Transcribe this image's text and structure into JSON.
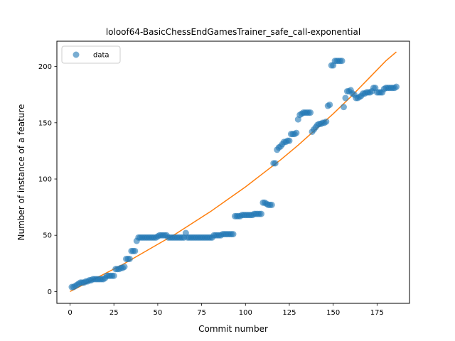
{
  "chart_data": {
    "type": "scatter",
    "title": "loloof64-BasicChessEndGamesTrainer_safe_call-exponential",
    "xlabel": "Commit number",
    "ylabel": "Number of instance of a feature",
    "xlim": [
      -7.5,
      193.5
    ],
    "ylim": [
      -10.5,
      222.5
    ],
    "xticks": [
      0,
      25,
      50,
      75,
      100,
      125,
      150,
      175
    ],
    "yticks": [
      0,
      50,
      100,
      150,
      200
    ],
    "grid": false,
    "legend": {
      "placement": "upper left",
      "entries": [
        "data"
      ]
    },
    "colors": {
      "data": "#1f77b4",
      "fit": "#ff7f0e"
    },
    "series": [
      {
        "name": "data",
        "kind": "scatter",
        "points": [
          [
            1,
            4
          ],
          [
            2,
            4
          ],
          [
            3,
            5
          ],
          [
            4,
            6
          ],
          [
            5,
            7
          ],
          [
            6,
            8
          ],
          [
            7,
            8
          ],
          [
            8,
            8
          ],
          [
            9,
            9
          ],
          [
            10,
            9
          ],
          [
            11,
            10
          ],
          [
            12,
            10
          ],
          [
            13,
            11
          ],
          [
            14,
            11
          ],
          [
            15,
            11
          ],
          [
            16,
            11
          ],
          [
            17,
            11
          ],
          [
            18,
            11
          ],
          [
            19,
            11
          ],
          [
            20,
            12
          ],
          [
            21,
            14
          ],
          [
            22,
            14
          ],
          [
            23,
            14
          ],
          [
            24,
            14
          ],
          [
            25,
            14
          ],
          [
            26,
            20
          ],
          [
            27,
            20
          ],
          [
            28,
            20
          ],
          [
            29,
            21
          ],
          [
            30,
            21
          ],
          [
            31,
            22
          ],
          [
            32,
            29
          ],
          [
            33,
            29
          ],
          [
            34,
            29
          ],
          [
            35,
            36
          ],
          [
            36,
            36
          ],
          [
            37,
            36
          ],
          [
            38,
            45
          ],
          [
            39,
            48
          ],
          [
            40,
            48
          ],
          [
            41,
            48
          ],
          [
            42,
            48
          ],
          [
            43,
            48
          ],
          [
            44,
            48
          ],
          [
            45,
            48
          ],
          [
            46,
            48
          ],
          [
            47,
            48
          ],
          [
            48,
            48
          ],
          [
            49,
            48
          ],
          [
            50,
            49
          ],
          [
            51,
            50
          ],
          [
            52,
            50
          ],
          [
            53,
            50
          ],
          [
            54,
            50
          ],
          [
            55,
            50
          ],
          [
            56,
            48
          ],
          [
            57,
            48
          ],
          [
            58,
            48
          ],
          [
            59,
            48
          ],
          [
            60,
            48
          ],
          [
            61,
            48
          ],
          [
            62,
            48
          ],
          [
            63,
            48
          ],
          [
            64,
            48
          ],
          [
            65,
            48
          ],
          [
            66,
            52
          ],
          [
            67,
            48
          ],
          [
            68,
            48
          ],
          [
            69,
            48
          ],
          [
            70,
            48
          ],
          [
            71,
            48
          ],
          [
            72,
            48
          ],
          [
            73,
            48
          ],
          [
            74,
            48
          ],
          [
            75,
            48
          ],
          [
            76,
            48
          ],
          [
            77,
            48
          ],
          [
            78,
            48
          ],
          [
            79,
            48
          ],
          [
            80,
            48
          ],
          [
            81,
            48
          ],
          [
            82,
            50
          ],
          [
            83,
            50
          ],
          [
            84,
            50
          ],
          [
            85,
            50
          ],
          [
            86,
            50
          ],
          [
            87,
            51
          ],
          [
            88,
            51
          ],
          [
            89,
            51
          ],
          [
            90,
            51
          ],
          [
            91,
            51
          ],
          [
            92,
            51
          ],
          [
            93,
            51
          ],
          [
            94,
            67
          ],
          [
            95,
            67
          ],
          [
            96,
            67
          ],
          [
            97,
            67
          ],
          [
            98,
            68
          ],
          [
            99,
            68
          ],
          [
            100,
            68
          ],
          [
            101,
            68
          ],
          [
            102,
            68
          ],
          [
            103,
            68
          ],
          [
            104,
            68
          ],
          [
            105,
            69
          ],
          [
            106,
            69
          ],
          [
            107,
            69
          ],
          [
            108,
            69
          ],
          [
            109,
            69
          ],
          [
            110,
            79
          ],
          [
            111,
            79
          ],
          [
            112,
            78
          ],
          [
            113,
            77
          ],
          [
            114,
            77
          ],
          [
            115,
            77
          ],
          [
            116,
            114
          ],
          [
            117,
            114
          ],
          [
            118,
            126
          ],
          [
            119,
            128
          ],
          [
            120,
            129
          ],
          [
            121,
            131
          ],
          [
            122,
            133
          ],
          [
            123,
            133
          ],
          [
            124,
            134
          ],
          [
            125,
            134
          ],
          [
            126,
            140
          ],
          [
            127,
            140
          ],
          [
            128,
            140
          ],
          [
            129,
            141
          ],
          [
            130,
            153
          ],
          [
            131,
            157
          ],
          [
            132,
            158
          ],
          [
            133,
            159
          ],
          [
            134,
            159
          ],
          [
            135,
            159
          ],
          [
            136,
            159
          ],
          [
            137,
            159
          ],
          [
            138,
            142
          ],
          [
            139,
            144
          ],
          [
            140,
            146
          ],
          [
            141,
            148
          ],
          [
            142,
            149
          ],
          [
            143,
            149
          ],
          [
            144,
            150
          ],
          [
            145,
            150
          ],
          [
            146,
            151
          ],
          [
            147,
            165
          ],
          [
            148,
            166
          ],
          [
            149,
            201
          ],
          [
            150,
            201
          ],
          [
            151,
            205
          ],
          [
            152,
            205
          ],
          [
            153,
            205
          ],
          [
            154,
            205
          ],
          [
            155,
            205
          ],
          [
            156,
            164
          ],
          [
            157,
            172
          ],
          [
            158,
            178
          ],
          [
            159,
            178
          ],
          [
            160,
            179
          ],
          [
            161,
            176
          ],
          [
            162,
            175
          ],
          [
            163,
            172
          ],
          [
            164,
            172
          ],
          [
            165,
            173
          ],
          [
            166,
            174
          ],
          [
            167,
            176
          ],
          [
            168,
            176
          ],
          [
            169,
            177
          ],
          [
            170,
            177
          ],
          [
            171,
            177
          ],
          [
            172,
            178
          ],
          [
            173,
            181
          ],
          [
            174,
            181
          ],
          [
            175,
            177
          ],
          [
            176,
            177
          ],
          [
            177,
            177
          ],
          [
            178,
            177
          ],
          [
            179,
            180
          ],
          [
            180,
            181
          ],
          [
            181,
            181
          ],
          [
            182,
            181
          ],
          [
            183,
            181
          ],
          [
            184,
            181
          ],
          [
            185,
            181
          ],
          [
            186,
            182
          ]
        ]
      },
      {
        "name": "",
        "kind": "line",
        "x": [
          0,
          10,
          20,
          30,
          40,
          50,
          60,
          70,
          80,
          90,
          100,
          110,
          120,
          130,
          140,
          150,
          160,
          170,
          180,
          186
        ],
        "y": [
          0,
          8,
          16,
          24,
          33,
          42,
          51,
          61,
          71,
          82,
          93,
          105,
          117,
          130,
          144,
          158,
          173,
          189,
          205,
          213
        ]
      }
    ]
  }
}
